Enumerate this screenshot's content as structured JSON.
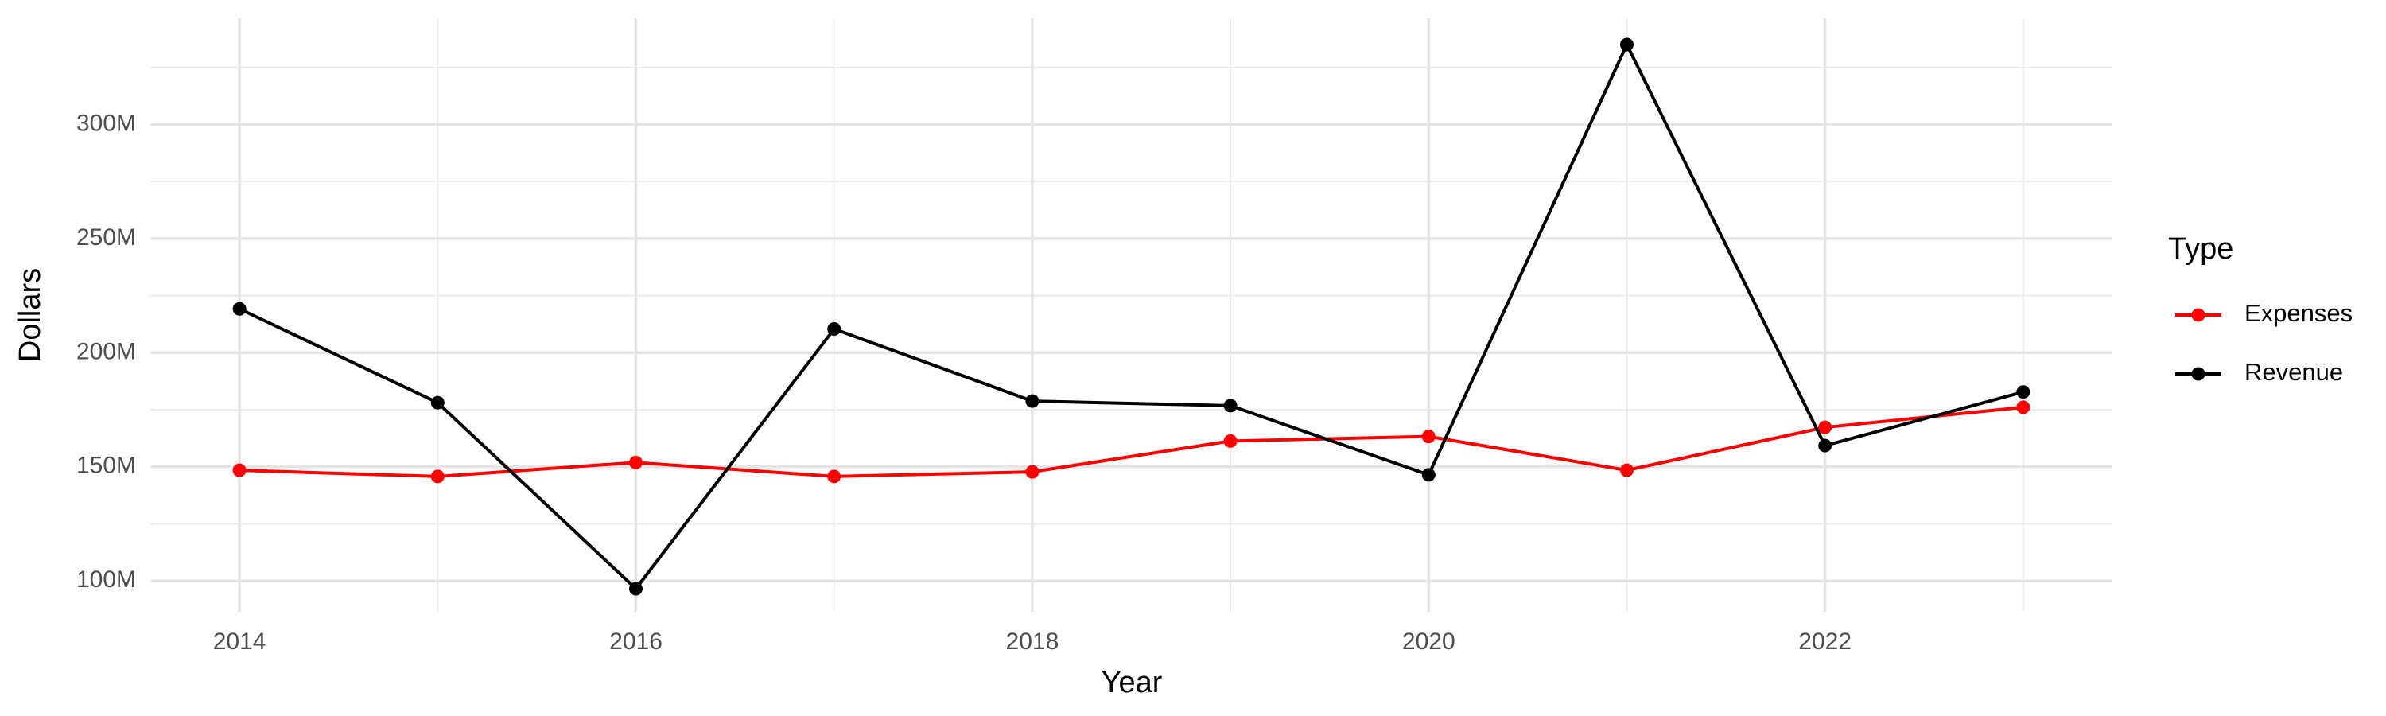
{
  "chart_data": {
    "type": "line",
    "x_label": "Year",
    "y_label": "Dollars",
    "legend_title": "Type",
    "legend_position": "right",
    "x": [
      2014,
      2015,
      2016,
      2017,
      2018,
      2019,
      2020,
      2021,
      2022,
      2023
    ],
    "series": [
      {
        "name": "Expenses",
        "color": "#ff0000",
        "values": [
          148500000,
          145800000,
          151900000,
          145800000,
          147800000,
          161300000,
          163300000,
          148500000,
          167300000,
          176100000
        ]
      },
      {
        "name": "Revenue",
        "color": "#000000",
        "values": [
          219200000,
          178100000,
          96600000,
          210400000,
          178800000,
          176800000,
          146500000,
          335000000,
          159300000,
          182800000
        ]
      }
    ],
    "xlim": [
      2013.55,
      2023.45
    ],
    "xticks": [
      2014,
      2016,
      2018,
      2020,
      2022
    ],
    "x_minor_ticks": [
      2015,
      2017,
      2019,
      2021,
      2023
    ],
    "ylim": [
      86500000,
      346500000
    ],
    "yticks": [
      {
        "value": 100000000,
        "label": "100M"
      },
      {
        "value": 150000000,
        "label": "150M"
      },
      {
        "value": 200000000,
        "label": "200M"
      },
      {
        "value": 250000000,
        "label": "250M"
      },
      {
        "value": 300000000,
        "label": "300M"
      }
    ],
    "y_minor_ticks": [
      125000000,
      175000000,
      225000000,
      275000000,
      325000000
    ],
    "grid": true
  }
}
